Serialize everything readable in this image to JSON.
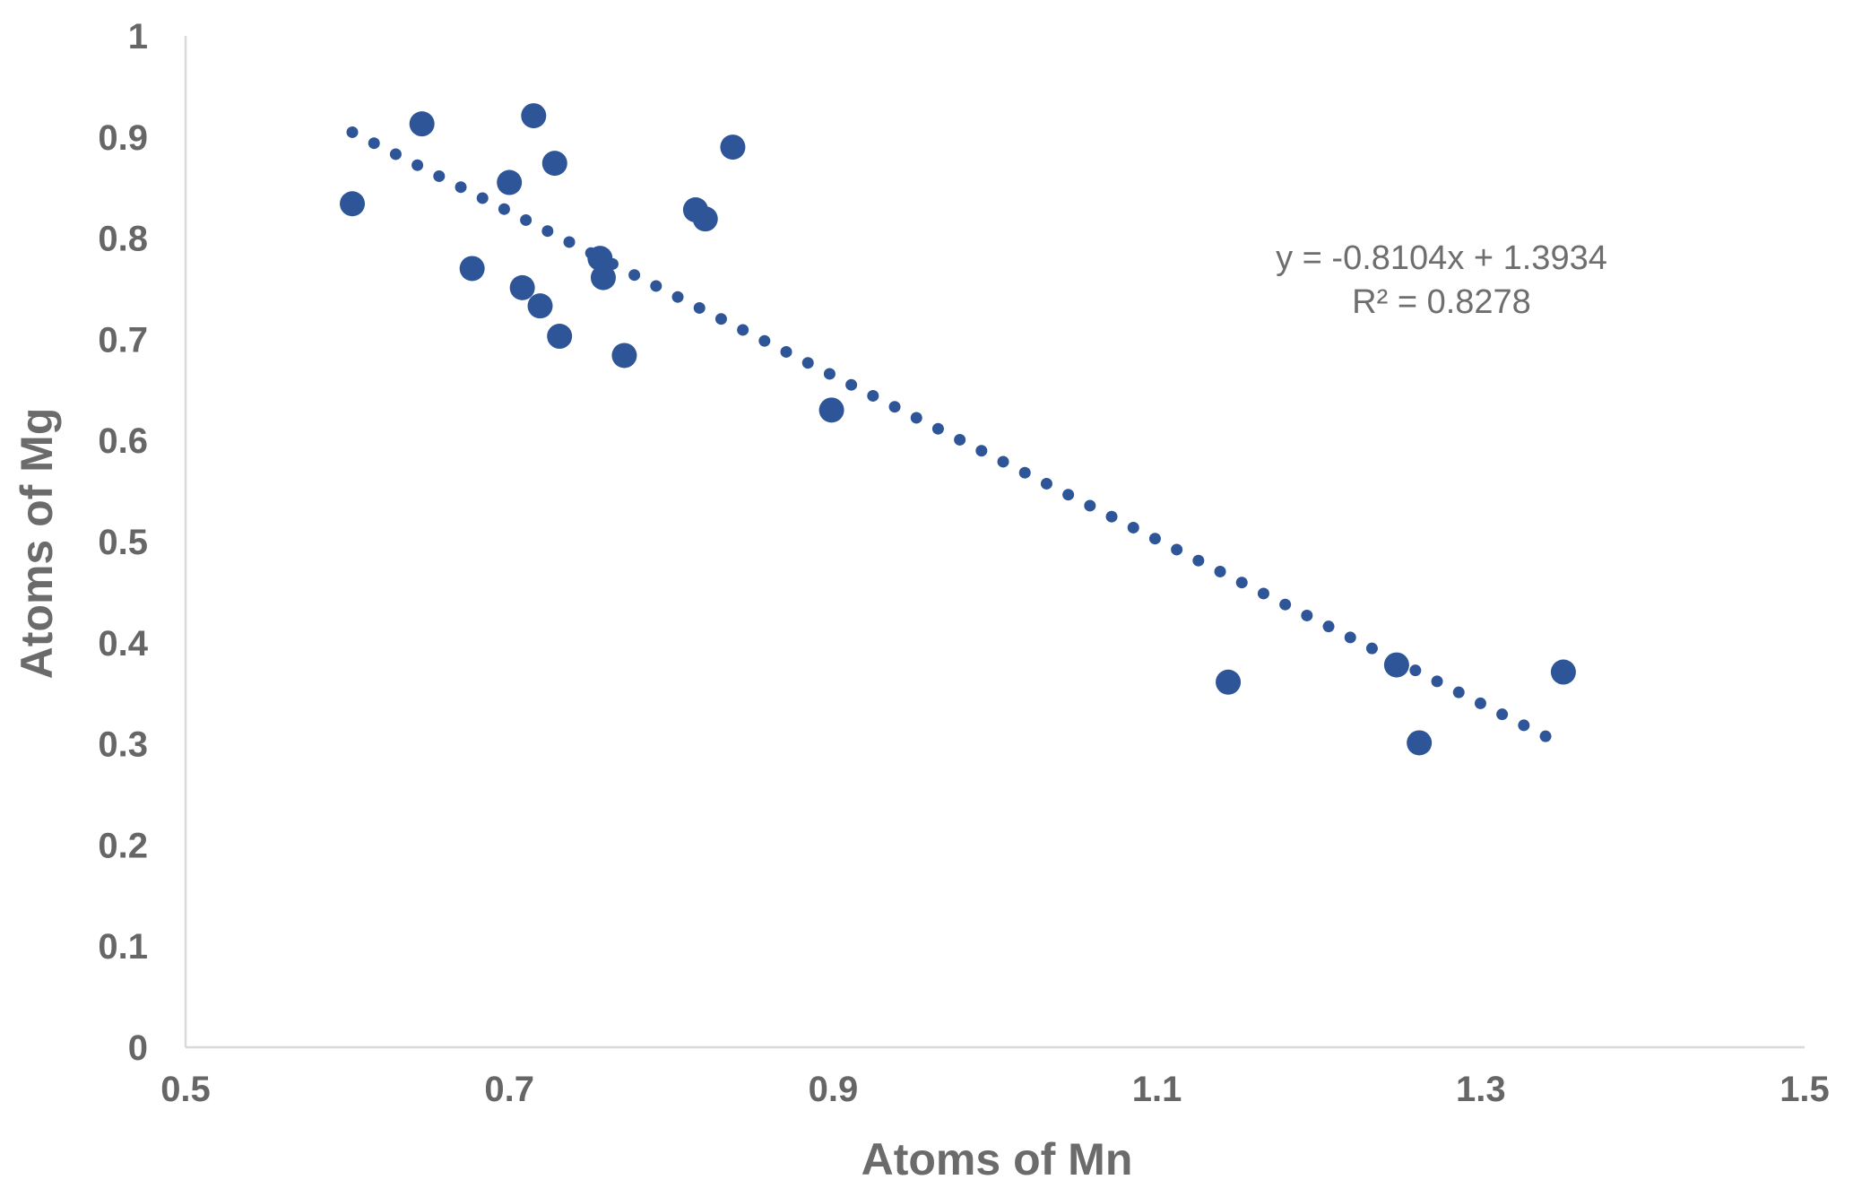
{
  "chart_data": {
    "type": "scatter",
    "xlabel": "Atoms of Mn",
    "ylabel": "Atoms of Mg",
    "xlim": [
      0.5,
      1.5
    ],
    "ylim": [
      0,
      1
    ],
    "x_ticks": [
      "0.5",
      "0.7",
      "0.9",
      "1.1",
      "1.3",
      "1.5"
    ],
    "y_ticks": [
      "0",
      "0.1",
      "0.2",
      "0.3",
      "0.4",
      "0.5",
      "0.6",
      "0.7",
      "0.8",
      "0.9",
      "1"
    ],
    "grid": false,
    "legend": "none",
    "colors": {
      "points": "#2e5597",
      "trendline": "#2e5597",
      "axis": "#d9d9d9",
      "text": "#666666"
    },
    "series": [
      {
        "points": [
          {
            "x": 0.603,
            "y": 0.834
          },
          {
            "x": 0.646,
            "y": 0.913
          },
          {
            "x": 0.677,
            "y": 0.77
          },
          {
            "x": 0.7,
            "y": 0.855
          },
          {
            "x": 0.708,
            "y": 0.751
          },
          {
            "x": 0.715,
            "y": 0.921
          },
          {
            "x": 0.719,
            "y": 0.733
          },
          {
            "x": 0.728,
            "y": 0.874
          },
          {
            "x": 0.731,
            "y": 0.703
          },
          {
            "x": 0.756,
            "y": 0.78
          },
          {
            "x": 0.758,
            "y": 0.761
          },
          {
            "x": 0.771,
            "y": 0.684
          },
          {
            "x": 0.815,
            "y": 0.828
          },
          {
            "x": 0.821,
            "y": 0.819
          },
          {
            "x": 0.838,
            "y": 0.89
          },
          {
            "x": 0.899,
            "y": 0.63
          },
          {
            "x": 1.144,
            "y": 0.361
          },
          {
            "x": 1.248,
            "y": 0.378
          },
          {
            "x": 1.262,
            "y": 0.301
          },
          {
            "x": 1.351,
            "y": 0.371
          }
        ]
      }
    ],
    "trendline": {
      "type": "linear",
      "slope": -0.8104,
      "intercept": 1.3934,
      "x_range": [
        0.603,
        1.34
      ],
      "style": "dotted"
    },
    "annotations": [
      "y = -0.8104x + 1.3934",
      "R² = 0.8278"
    ]
  }
}
